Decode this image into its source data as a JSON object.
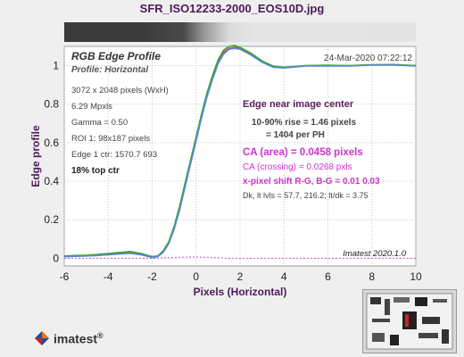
{
  "figure": {
    "title": "SFR_ISO12233-2000_EOS10D.jpg",
    "timestamp": "24-Mar-2020 07:22:12",
    "watermark": "Imatest 2020.1.0",
    "logo_text": "imatest",
    "logo_reg": "®"
  },
  "annotations": {
    "title": "RGB Edge Profile",
    "profile": "Profile: Horizontal",
    "info_lines": [
      "3072 x 2048 pixels (WxH)",
      "6.29 Mpxls",
      "Gamma = 0.50",
      "ROI 1: 98x187 pixels",
      "Edge 1 ctr: 1570.7  693"
    ],
    "top_ctr": "18% top ctr",
    "edge_header": "Edge near image center",
    "rise": "10-90% rise = 1.46 pixels",
    "per_ph": "= 1404 per PH",
    "ca_area": "CA (area) = 0.0458 pixels",
    "ca_crossing": "CA (crossing) = 0.0268 pxls",
    "xshift": "x-pixel shift R-G, B-G = 0.01  0.03",
    "dk": "Dk, lt lvls = 57.7, 216.2;  lt/dk = 3.75"
  },
  "chart_data": {
    "type": "line",
    "title": "RGB Edge Profile",
    "xlabel": "Pixels (Horizontal)",
    "ylabel": "Edge profile",
    "xlim": [
      -6,
      10
    ],
    "ylim": [
      -0.04,
      1.1
    ],
    "xticks": [
      -6,
      -4,
      -2,
      0,
      2,
      4,
      6,
      8,
      10
    ],
    "yticks": [
      0,
      0.2,
      0.4,
      0.6,
      0.8,
      1
    ],
    "ytick_labels": [
      "0",
      "0.2",
      "0.4",
      "0.6",
      "0.8",
      "1"
    ],
    "grid": true,
    "x": [
      -6,
      -5.5,
      -5,
      -4.5,
      -4,
      -3.5,
      -3,
      -2.5,
      -2,
      -1.75,
      -1.5,
      -1.25,
      -1,
      -0.75,
      -0.5,
      -0.25,
      0,
      0.25,
      0.5,
      0.75,
      1,
      1.25,
      1.5,
      1.75,
      2,
      2.5,
      3,
      3.5,
      4,
      4.5,
      5,
      6,
      7,
      8,
      9,
      10
    ],
    "series": [
      {
        "color": "#e04040",
        "values": [
          0.01,
          0.012,
          0.014,
          0.016,
          0.02,
          0.025,
          0.03,
          0.02,
          0.005,
          0.01,
          0.035,
          0.08,
          0.16,
          0.26,
          0.38,
          0.5,
          0.62,
          0.74,
          0.85,
          0.94,
          1.02,
          1.07,
          1.09,
          1.095,
          1.09,
          1.06,
          1.02,
          0.995,
          0.99,
          0.995,
          1.0,
          1.0,
          1.0,
          1.005,
          1.005,
          1.0
        ]
      },
      {
        "color": "#33aa33",
        "values": [
          0.012,
          0.014,
          0.016,
          0.02,
          0.025,
          0.03,
          0.035,
          0.025,
          0.008,
          0.012,
          0.038,
          0.085,
          0.165,
          0.27,
          0.39,
          0.51,
          0.63,
          0.75,
          0.86,
          0.95,
          1.03,
          1.08,
          1.1,
          1.105,
          1.095,
          1.065,
          1.025,
          0.998,
          0.992,
          0.996,
          1.0,
          1.002,
          1.0,
          1.004,
          1.006,
          1.0
        ]
      },
      {
        "color": "#5a86d8",
        "values": [
          0.008,
          0.01,
          0.012,
          0.014,
          0.018,
          0.022,
          0.026,
          0.018,
          0.004,
          0.008,
          0.03,
          0.075,
          0.15,
          0.25,
          0.37,
          0.49,
          0.61,
          0.73,
          0.84,
          0.93,
          1.01,
          1.06,
          1.085,
          1.09,
          1.085,
          1.055,
          1.018,
          0.992,
          0.988,
          0.993,
          0.998,
          0.998,
          0.998,
          1.003,
          1.003,
          0.998
        ]
      },
      {
        "color": "#bb66cc",
        "dashed": true,
        "values": [
          0.0,
          0.0,
          0.0,
          0.0,
          0.0,
          0.0,
          0.0,
          0.0,
          0.0,
          0.0,
          0.002,
          0.003,
          0.004,
          0.005,
          0.006,
          0.007,
          0.007,
          0.006,
          0.005,
          0.004,
          0.003,
          0.002,
          0.0,
          0.0,
          0.0,
          0.0,
          0.0,
          0.0,
          0.0,
          0.0,
          0.0,
          0.0,
          0.0,
          0.0,
          0.0,
          0.0
        ]
      }
    ]
  }
}
